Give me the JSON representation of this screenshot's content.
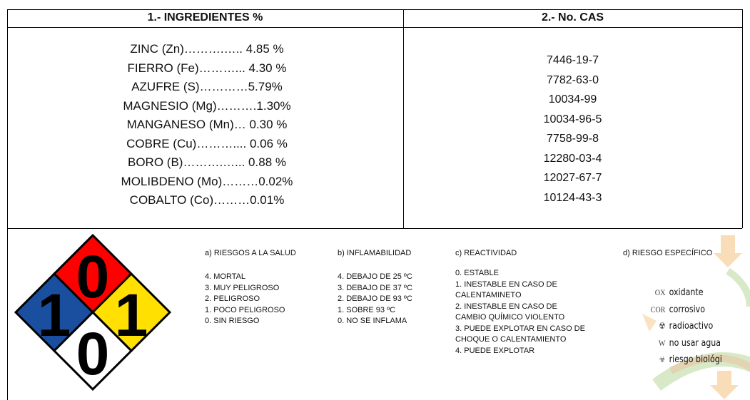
{
  "table": {
    "headers": [
      "1.- INGREDIENTES %",
      "2.- No. CAS"
    ],
    "ingredients": [
      "ZINC (Zn)……….….. 4.85 %",
      "FIERRO (Fe)………... 4.30 %",
      "AZUFRE (S)…………5.79%",
      "MAGNESIO (Mg)……….1.30%",
      "MANGANESO (Mn)… 0.30 %",
      "COBRE (Cu)……….... 0.06 %",
      "BORO (B)……….…... 0.88 %",
      "MOLIBDENO (Mo)………0.02%",
      "COBALTO (Co)………0.01%"
    ],
    "cas": [
      "7446-19-7",
      "7782-63-0",
      "10034-99",
      "10034-96-5",
      "7758-99-8",
      "12280-03-4",
      "12027-67-7",
      "10124-43-3"
    ]
  },
  "nfpa": {
    "top": "0",
    "left": "1",
    "right": "1",
    "bottom": "0"
  },
  "legend": [
    {
      "title": "a) RIESGOS A LA SALUD",
      "items": [
        "4. MORTAL",
        "3. MUY PELIGROSO",
        "2. PELIGROSO",
        "1. POCO PELIGROSO",
        "0. SIN RIESGO"
      ]
    },
    {
      "title": "b) INFLAMABILIDAD",
      "items": [
        "4. DEBAJO DE 25 ºC",
        "3. DEBAJO DE 37 ºC",
        "2. DEBAJO DE 93 ºC",
        "1. SOBRE 93 ºC",
        "0. NO SE INFLAMA"
      ]
    },
    {
      "title": "c) REACTIVIDAD",
      "items": [
        "0. ESTABLE",
        "1. INESTABLE EN CASO DE",
        "CALENTAMINETO",
        "2. INESTABLE EN CASO DE",
        "CAMBIO QUÍMICO VIOLENTO",
        "3. PUEDE EXPLOTAR EN CASO DE",
        "CHOQUE O CALENTAMIENTO",
        "4. PUEDE EXPLOTAR"
      ]
    }
  ],
  "specific": {
    "title": "d) RIESGO ESPECÍFICO",
    "items": [
      {
        "code": "OX",
        "label": "oxidante"
      },
      {
        "code": "COR",
        "label": "corrosivo"
      },
      {
        "label": "radioactivo"
      },
      {
        "code": "W",
        "label": "no usar agua"
      },
      {
        "label": "riesgo biológi"
      }
    ]
  }
}
